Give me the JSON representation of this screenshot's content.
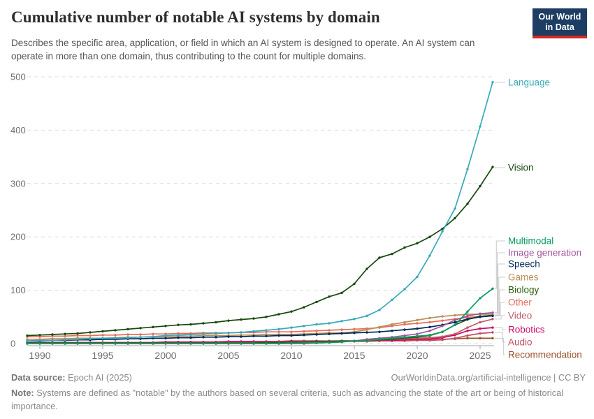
{
  "header": {
    "title": "Cumulative number of notable AI systems by domain",
    "subtitle": "Describes the specific area, application, or field in which an AI system is designed to operate. An AI system can operate in more than one domain, thus contributing to the count for multiple domains.",
    "logo": {
      "line1": "Our World",
      "line2": "in Data",
      "bg_color": "#1d3d63",
      "accent_color": "#d42b23"
    }
  },
  "footer": {
    "source_label": "Data source:",
    "source": "Epoch AI (2025)",
    "link": "OurWorldinData.org/artificial-intelligence | CC BY",
    "note_label": "Note:",
    "note": "Systems are defined as \"notable\" by the authors based on several criteria, such as advancing the state of the art or being of historical importance."
  },
  "chart_data": {
    "type": "line",
    "title": "Cumulative number of notable AI systems by domain",
    "xlabel": "",
    "ylabel": "",
    "xlim": [
      1989,
      2026
    ],
    "ylim": [
      0,
      500
    ],
    "x_ticks": [
      1990,
      1995,
      2000,
      2005,
      2010,
      2015,
      2020,
      2025
    ],
    "y_ticks": [
      0,
      100,
      200,
      300,
      400,
      500
    ],
    "grid": "horizontal-dashed",
    "legend_position": "right-edge-labels",
    "marker": "point",
    "x": [
      1989,
      1990,
      1991,
      1992,
      1993,
      1994,
      1995,
      1996,
      1997,
      1998,
      1999,
      2000,
      2001,
      2002,
      2003,
      2004,
      2005,
      2006,
      2007,
      2008,
      2009,
      2010,
      2011,
      2012,
      2013,
      2014,
      2015,
      2016,
      2017,
      2018,
      2019,
      2020,
      2021,
      2022,
      2023,
      2024,
      2025,
      2026
    ],
    "series": [
      {
        "name": "Language",
        "color": "#38AABA",
        "values": [
          5,
          6,
          6,
          7,
          8,
          9,
          10,
          10,
          11,
          12,
          13,
          15,
          16,
          17,
          18,
          19,
          20,
          21,
          23,
          25,
          27,
          30,
          33,
          36,
          38,
          42,
          46,
          52,
          63,
          82,
          102,
          125,
          165,
          210,
          253,
          327,
          407,
          490
        ]
      },
      {
        "name": "Vision",
        "color": "#18470F",
        "values": [
          15,
          16,
          17,
          18,
          19,
          21,
          23,
          25,
          27,
          29,
          31,
          33,
          35,
          36,
          38,
          40,
          43,
          45,
          47,
          50,
          55,
          60,
          68,
          78,
          88,
          95,
          112,
          140,
          161,
          168,
          180,
          188,
          200,
          215,
          235,
          262,
          295,
          331
        ]
      },
      {
        "name": "Multimodal",
        "color": "#089B62",
        "values": [
          0,
          0,
          0,
          0,
          0,
          0,
          0,
          0,
          0,
          0,
          0,
          0,
          0,
          0,
          0,
          0,
          0,
          0,
          0,
          0,
          0,
          1,
          1,
          1,
          2,
          3,
          5,
          6,
          8,
          10,
          12,
          14,
          16,
          22,
          35,
          60,
          85,
          103
        ]
      },
      {
        "name": "Image generation",
        "color": "#A2559C",
        "values": [
          0,
          0,
          0,
          0,
          0,
          0,
          0,
          0,
          0,
          0,
          0,
          0,
          0,
          0,
          0,
          0,
          0,
          0,
          0,
          0,
          0,
          0,
          0,
          1,
          2,
          3,
          5,
          8,
          10,
          12,
          15,
          18,
          24,
          33,
          44,
          52,
          56,
          58
        ]
      },
      {
        "name": "Speech",
        "color": "#00295B",
        "values": [
          5,
          5,
          6,
          6,
          7,
          7,
          8,
          8,
          9,
          9,
          10,
          10,
          11,
          11,
          12,
          12,
          13,
          13,
          14,
          14,
          15,
          15,
          16,
          17,
          18,
          19,
          20,
          21,
          22,
          24,
          26,
          28,
          31,
          35,
          40,
          46,
          50,
          52
        ]
      },
      {
        "name": "Games",
        "color": "#BC8E5A",
        "values": [
          8,
          8,
          9,
          9,
          10,
          10,
          10,
          11,
          12,
          12,
          13,
          13,
          14,
          14,
          15,
          15,
          15,
          16,
          16,
          17,
          17,
          17,
          18,
          19,
          20,
          20,
          22,
          26,
          31,
          36,
          40,
          44,
          48,
          51,
          53,
          55,
          55,
          55
        ]
      },
      {
        "name": "Biology",
        "color": "#2C5E0F",
        "values": [
          1,
          1,
          1,
          1,
          1,
          1,
          1,
          1,
          1,
          1,
          1,
          1,
          1,
          1,
          1,
          1,
          1,
          1,
          1,
          2,
          2,
          3,
          3,
          4,
          4,
          5,
          5,
          6,
          7,
          8,
          10,
          12,
          15,
          22,
          35,
          45,
          51,
          53
        ]
      },
      {
        "name": "Other",
        "color": "#E56E5A",
        "values": [
          13,
          13,
          14,
          14,
          15,
          15,
          16,
          16,
          17,
          17,
          18,
          18,
          19,
          19,
          20,
          20,
          20,
          21,
          21,
          22,
          22,
          22,
          23,
          24,
          25,
          26,
          27,
          28,
          30,
          33,
          36,
          38,
          40,
          43,
          46,
          49,
          51,
          52
        ]
      },
      {
        "name": "Video",
        "color": "#BC5B68",
        "values": [
          1,
          1,
          1,
          1,
          1,
          1,
          1,
          1,
          1,
          1,
          1,
          1,
          1,
          1,
          1,
          1,
          2,
          2,
          2,
          3,
          3,
          3,
          4,
          4,
          5,
          5,
          5,
          6,
          7,
          8,
          9,
          10,
          11,
          13,
          18,
          30,
          40,
          46
        ]
      },
      {
        "name": "Robotics",
        "color": "#CF0A66",
        "values": [
          2,
          2,
          2,
          2,
          2,
          2,
          2,
          2,
          2,
          2,
          2,
          3,
          3,
          3,
          3,
          3,
          4,
          4,
          4,
          4,
          4,
          5,
          5,
          5,
          5,
          5,
          5,
          6,
          6,
          6,
          7,
          8,
          9,
          11,
          16,
          24,
          28,
          30
        ]
      },
      {
        "name": "Audio",
        "color": "#C15065",
        "values": [
          1,
          1,
          1,
          1,
          1,
          1,
          1,
          1,
          1,
          1,
          1,
          1,
          1,
          1,
          2,
          2,
          2,
          2,
          2,
          3,
          3,
          3,
          3,
          3,
          4,
          4,
          4,
          4,
          5,
          5,
          5,
          6,
          6,
          7,
          10,
          15,
          19,
          21
        ]
      },
      {
        "name": "Recommendation",
        "color": "#9A5129",
        "values": [
          1,
          1,
          1,
          1,
          1,
          1,
          1,
          1,
          1,
          1,
          1,
          2,
          2,
          2,
          2,
          2,
          3,
          3,
          3,
          3,
          3,
          3,
          4,
          4,
          4,
          4,
          5,
          5,
          5,
          6,
          6,
          7,
          7,
          8,
          9,
          10,
          10,
          10
        ]
      }
    ]
  }
}
